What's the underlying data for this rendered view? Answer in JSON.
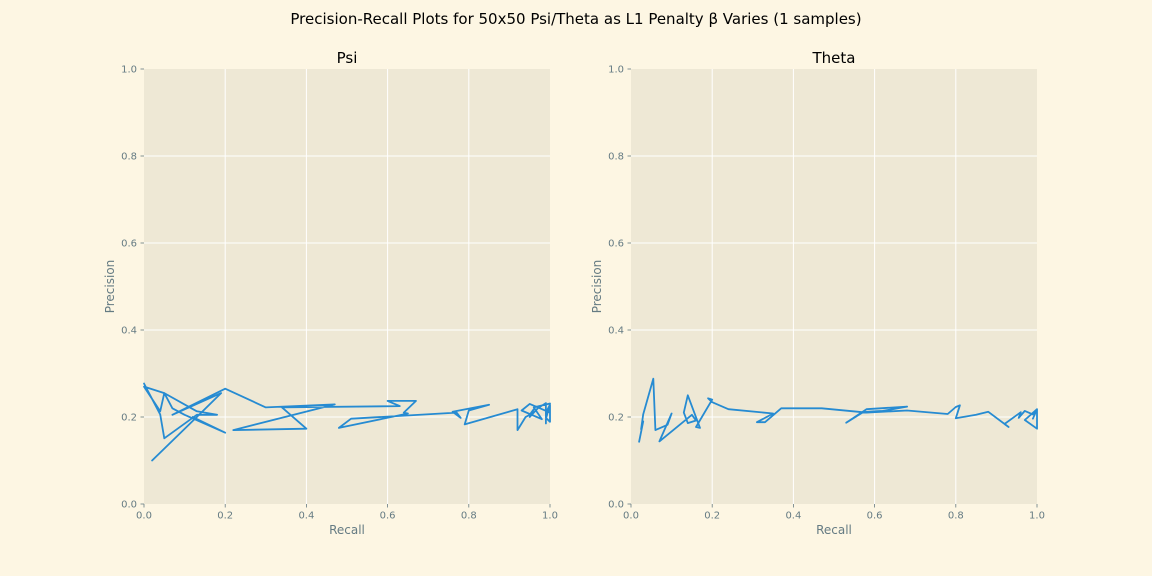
{
  "figure": {
    "title": "Precision-Recall Plots for 50x50 Psi/Theta as L1 Penalty β Varies (1 samples)",
    "background": "#fdf6e3",
    "axes_background": "#eee8d5",
    "grid_color": "#ffffff",
    "text_color": "#657b83"
  },
  "chart_data": [
    {
      "type": "line",
      "title": "Psi",
      "xlabel": "Recall",
      "ylabel": "Precision",
      "xlim": [
        0,
        1
      ],
      "ylim": [
        0,
        1
      ],
      "xticks": [
        0.0,
        0.2,
        0.4,
        0.6,
        0.8,
        1.0
      ],
      "yticks": [
        0.0,
        0.2,
        0.4,
        0.6,
        0.8,
        1.0
      ],
      "xtick_labels": [
        "0.0",
        "0.2",
        "0.4",
        "0.6",
        "0.8",
        "1.0"
      ],
      "ytick_labels": [
        "0.0",
        "0.2",
        "0.4",
        "0.6",
        "0.8",
        "1.0"
      ],
      "grid": true,
      "series": [
        {
          "color": "#268bd2",
          "x": [
            0.02,
            0.13,
            0.19,
            0.07,
            0.2,
            0.3,
            0.47,
            0.22,
            0.4,
            0.34,
            0.63,
            0.6,
            0.67,
            0.64,
            0.65,
            0.48,
            0.51,
            0.77,
            0.78,
            0.76,
            0.85,
            0.8,
            0.79,
            0.92,
            0.92,
            0.94,
            0.95,
            0.96,
            0.95,
            0.97,
            0.99,
            0.99,
            1.0,
            1.0,
            0.99,
            1.0,
            1.0,
            0.95,
            0.93,
            0.98,
            0.96,
            1.0,
            0.99,
            0.99
          ],
          "y": [
            0.1,
            0.2,
            0.255,
            0.205,
            0.265,
            0.222,
            0.229,
            0.17,
            0.173,
            0.222,
            0.225,
            0.237,
            0.237,
            0.21,
            0.208,
            0.175,
            0.196,
            0.21,
            0.198,
            0.212,
            0.228,
            0.215,
            0.183,
            0.218,
            0.17,
            0.2,
            0.205,
            0.218,
            0.2,
            0.22,
            0.232,
            0.198,
            0.189,
            0.228,
            0.21,
            0.22,
            0.21,
            0.23,
            0.215,
            0.195,
            0.222,
            0.231,
            0.195,
            0.185
          ]
        },
        {
          "color": "#268bd2",
          "x": [
            0.0,
            0.04,
            0.05,
            0.13,
            0.18,
            0.13,
            0.05,
            0.04,
            0.0,
            0.05,
            0.07,
            0.1,
            0.2,
            0.12
          ],
          "y": [
            0.277,
            0.206,
            0.151,
            0.205,
            0.205,
            0.213,
            0.255,
            0.213,
            0.27,
            0.255,
            0.22,
            0.205,
            0.164,
            0.2
          ]
        }
      ]
    },
    {
      "type": "line",
      "title": "Theta",
      "xlabel": "Recall",
      "ylabel": "Precision",
      "xlim": [
        0,
        1
      ],
      "ylim": [
        0,
        1
      ],
      "xticks": [
        0.0,
        0.2,
        0.4,
        0.6,
        0.8,
        1.0
      ],
      "yticks": [
        0.0,
        0.2,
        0.4,
        0.6,
        0.8,
        1.0
      ],
      "xtick_labels": [
        "0.0",
        "0.2",
        "0.4",
        "0.6",
        "0.8",
        "1.0"
      ],
      "ytick_labels": [
        "0.0",
        "0.2",
        "0.4",
        "0.6",
        "0.8",
        "1.0"
      ],
      "grid": true,
      "series": [
        {
          "color": "#268bd2",
          "x": [
            0.02,
            0.03,
            0.025,
            0.03,
            0.055,
            0.06,
            0.09,
            0.1,
            0.07,
            0.15,
            0.16,
            0.14,
            0.13,
            0.14,
            0.17,
            0.16,
            0.2,
            0.19,
            0.2,
            0.24,
            0.35,
            0.31,
            0.33,
            0.37,
            0.47,
            0.57,
            0.6,
            0.62,
            0.68,
            0.58,
            0.53,
            0.57,
            0.58,
            0.68,
            0.78,
            0.8,
            0.81,
            0.8,
            0.85,
            0.88,
            0.93,
            0.92,
            0.96,
            0.955,
            0.97,
            0.99,
            1.0,
            0.99,
            1.0,
            0.97,
            1.0,
            1.0
          ],
          "y": [
            0.143,
            0.19,
            0.172,
            0.206,
            0.288,
            0.17,
            0.182,
            0.208,
            0.144,
            0.205,
            0.192,
            0.186,
            0.21,
            0.25,
            0.175,
            0.177,
            0.24,
            0.243,
            0.234,
            0.218,
            0.208,
            0.188,
            0.188,
            0.22,
            0.22,
            0.211,
            0.213,
            0.214,
            0.224,
            0.218,
            0.187,
            0.21,
            0.21,
            0.215,
            0.207,
            0.223,
            0.227,
            0.197,
            0.205,
            0.212,
            0.177,
            0.184,
            0.211,
            0.198,
            0.214,
            0.206,
            0.218,
            0.196,
            0.218,
            0.193,
            0.173,
            0.217
          ]
        }
      ]
    }
  ]
}
